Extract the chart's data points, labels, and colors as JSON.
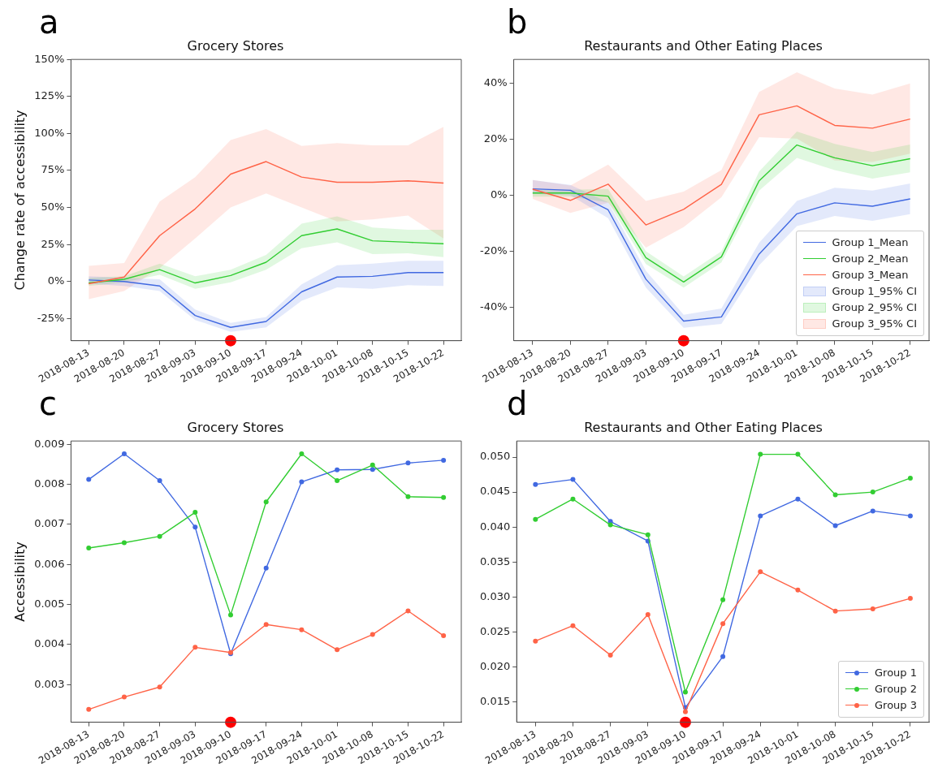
{
  "chart_data": [
    {
      "type": "line",
      "title": "Grocery Stores",
      "ylabel": "Change rate of accessibility",
      "annotations": [
        "a"
      ],
      "categories": [
        "2018-08-13",
        "2018-08-20",
        "2018-08-27",
        "2018-09-03",
        "2018-09-10",
        "2018-09-17",
        "2018-09-24",
        "2018-10-01",
        "2018-10-08",
        "2018-10-15",
        "2018-10-22"
      ],
      "ylim": [
        -40,
        150
      ],
      "yticks": [
        {
          "value": -25,
          "label": "-25%"
        },
        {
          "value": 0,
          "label": "0%"
        },
        {
          "value": 25,
          "label": "25%"
        },
        {
          "value": 50,
          "label": "50%"
        },
        {
          "value": 75,
          "label": "75%"
        },
        {
          "value": 100,
          "label": "100%"
        },
        {
          "value": 125,
          "label": "125%"
        },
        {
          "value": 150,
          "label": "150%"
        }
      ],
      "grid": false,
      "legend": false,
      "marker": "none",
      "series": [
        {
          "type": "line",
          "color": "#4169e1",
          "values": [
            1,
            0,
            -3,
            -23,
            -31,
            -27,
            -7,
            3,
            3.5,
            6,
            6
          ],
          "lower": [
            -1.5,
            -3,
            -6.5,
            -26,
            -34,
            -31,
            -13,
            -4,
            -5,
            -2.5,
            -3
          ],
          "upper": [
            3.5,
            2.5,
            1.5,
            -19,
            -28,
            -24,
            -2,
            11,
            12,
            14,
            14
          ]
        },
        {
          "type": "line",
          "color": "#32cd32",
          "values": [
            -1,
            1.5,
            8,
            -1,
            4,
            13,
            31,
            35.5,
            27.5,
            26.5,
            25.5
          ],
          "lower": [
            -3,
            -0.5,
            4.5,
            -5,
            -0.5,
            8,
            22.5,
            26.5,
            18.5,
            19,
            16.5
          ],
          "upper": [
            2.5,
            3.5,
            12,
            3.5,
            8,
            18,
            39,
            44,
            36.5,
            35,
            35
          ]
        },
        {
          "type": "line",
          "color": "#ff6347",
          "values": [
            -1.5,
            3,
            31,
            49,
            72.5,
            81,
            70.5,
            67,
            67,
            68,
            66.5
          ],
          "lower": [
            -12,
            -6.5,
            9,
            29,
            50,
            59.5,
            50,
            40.5,
            42,
            44.5,
            29
          ],
          "upper": [
            10.5,
            12.5,
            54,
            70.5,
            95.5,
            103,
            91.5,
            93.5,
            92,
            92,
            104.5
          ]
        },
        {
          "type": "scatter",
          "marker": "circle",
          "color": "#ff0000",
          "values": [
            null,
            null,
            null,
            null,
            -40,
            null,
            null,
            null,
            null,
            null,
            null
          ]
        }
      ]
    },
    {
      "type": "line",
      "title": "Restaurants and Other Eating Places",
      "annotations": [
        "b",
        "Group 1_95% CI",
        "Group 2_95% CI",
        "Group 3_95% CI"
      ],
      "categories": [
        "2018-08-13",
        "2018-08-20",
        "2018-08-27",
        "2018-09-03",
        "2018-09-10",
        "2018-09-17",
        "2018-09-24",
        "2018-10-01",
        "2018-10-08",
        "2018-10-15",
        "2018-10-22"
      ],
      "ylim": [
        -52,
        48.6
      ],
      "yticks": [
        {
          "value": -40,
          "label": "-40%"
        },
        {
          "value": -20,
          "label": "-20%"
        },
        {
          "value": 0,
          "label": "0%"
        },
        {
          "value": 20,
          "label": "20%"
        },
        {
          "value": 40,
          "label": "40%"
        }
      ],
      "grid": false,
      "legend": "bottom right",
      "marker": "none",
      "series": [
        {
          "type": "line",
          "name": "Group 1_Mean",
          "color": "#4169e1",
          "values": [
            2.3,
            1.8,
            -5.2,
            -30,
            -45,
            -43.5,
            -21,
            -6.6,
            -2.7,
            -3.9,
            -1.3
          ],
          "lower": [
            0.5,
            0,
            -8.2,
            -33,
            -47.4,
            -46,
            -25,
            -11,
            -7.4,
            -9.1,
            -6.7
          ],
          "upper": [
            5.5,
            3.7,
            -2.5,
            -27,
            -42.7,
            -40.5,
            -17,
            -2,
            2.7,
            1.7,
            4.2
          ]
        },
        {
          "type": "line",
          "name": "Group 2_Mean",
          "color": "#32cd32",
          "values": [
            0.8,
            0.8,
            -0.3,
            -22.3,
            -31,
            -22,
            5.2,
            18,
            13.4,
            10.6,
            13.1
          ],
          "lower": [
            -0.5,
            -0.5,
            -2.5,
            -24.6,
            -33,
            -24,
            1.7,
            13.4,
            9,
            6,
            8.2
          ],
          "upper": [
            2,
            2,
            2.3,
            -20,
            -29,
            -20,
            8.5,
            22.8,
            18.4,
            15.5,
            18.2
          ]
        },
        {
          "type": "line",
          "name": "Group 3_Mean",
          "color": "#ff6347",
          "values": [
            2.2,
            -1.8,
            4,
            -10.6,
            -5,
            3.9,
            28.8,
            32,
            25,
            24,
            27.3
          ],
          "lower": [
            -1.3,
            -6.3,
            -2.7,
            -18.7,
            -11.4,
            -0.7,
            20.8,
            20.3,
            12.4,
            11.9,
            14.9
          ],
          "upper": [
            5.5,
            3.5,
            11,
            -2,
            1.3,
            9,
            37,
            44,
            38.2,
            36,
            40
          ]
        },
        {
          "type": "scatter",
          "marker": "circle",
          "color": "#ff0000",
          "values": [
            null,
            null,
            null,
            null,
            -52,
            null,
            null,
            null,
            null,
            null,
            null
          ]
        }
      ]
    },
    {
      "type": "line",
      "title": "Grocery Stores",
      "ylabel": "Accessibility",
      "annotations": [
        "c"
      ],
      "categories": [
        "2018-08-13",
        "2018-08-20",
        "2018-08-27",
        "2018-09-03",
        "2018-09-10",
        "2018-09-17",
        "2018-09-24",
        "2018-10-01",
        "2018-10-08",
        "2018-10-15",
        "2018-10-22"
      ],
      "ylim": [
        0.00206,
        0.00908
      ],
      "yticks": [
        0.003,
        0.004,
        0.005,
        0.006,
        0.007,
        0.008,
        0.009
      ],
      "grid": false,
      "legend": false,
      "marker": "circle",
      "series": [
        {
          "type": "line",
          "color": "#4169e1",
          "values": [
            0.00812,
            0.00876,
            0.00809,
            0.00693,
            0.00377,
            0.00591,
            0.00806,
            0.00836,
            0.00837,
            0.00853,
            0.0086
          ]
        },
        {
          "type": "line",
          "color": "#32cd32",
          "values": [
            0.00641,
            0.00654,
            0.0067,
            0.0073,
            0.00474,
            0.00756,
            0.00876,
            0.00809,
            0.00848,
            0.00769,
            0.00767
          ]
        },
        {
          "type": "line",
          "color": "#ff6347",
          "values": [
            0.00238,
            0.00269,
            0.00294,
            0.00393,
            0.0038,
            0.0045,
            0.00437,
            0.00387,
            0.00425,
            0.00484,
            0.00422
          ]
        },
        {
          "type": "scatter",
          "color": "#ff0000",
          "values": [
            null,
            null,
            null,
            null,
            0.00206,
            null,
            null,
            null,
            null,
            null,
            null
          ]
        }
      ]
    },
    {
      "type": "line",
      "title": "Restaurants and Other Eating Places",
      "annotations": [
        "d"
      ],
      "categories": [
        "2018-08-13",
        "2018-08-20",
        "2018-08-27",
        "2018-09-03",
        "2018-09-10",
        "2018-09-17",
        "2018-09-24",
        "2018-10-01",
        "2018-10-08",
        "2018-10-15",
        "2018-10-22"
      ],
      "ylim": [
        0.0121,
        0.0523
      ],
      "yticks": [
        0.015,
        {
          "value": 0.02,
          "label": "0.020"
        },
        0.025,
        {
          "value": 0.03,
          "label": "0.030"
        },
        0.035,
        {
          "value": 0.04,
          "label": "0.040"
        },
        0.045,
        {
          "value": 0.05,
          "label": "0.050"
        }
      ],
      "grid": false,
      "legend": "bottom right",
      "marker": "circle",
      "series": [
        {
          "type": "line",
          "name": "Group 1",
          "color": "#4169e1",
          "values": [
            0.0461,
            0.0468,
            0.0408,
            0.038,
            0.0142,
            0.0215,
            0.0416,
            0.044,
            0.0402,
            0.0423,
            0.0416
          ]
        },
        {
          "type": "line",
          "name": "Group 2",
          "color": "#32cd32",
          "values": [
            0.0411,
            0.044,
            0.0403,
            0.0389,
            0.0164,
            0.0296,
            0.0504,
            0.0504,
            0.0446,
            0.045,
            0.047
          ]
        },
        {
          "type": "line",
          "name": "Group 3",
          "color": "#ff6347",
          "values": [
            0.0237,
            0.0259,
            0.0217,
            0.0275,
            0.0136,
            0.0262,
            0.0336,
            0.031,
            0.028,
            0.0283,
            0.0298
          ]
        },
        {
          "type": "scatter",
          "color": "#ff0000",
          "values": [
            null,
            null,
            null,
            null,
            0.0121,
            null,
            null,
            null,
            null,
            null,
            null
          ]
        }
      ]
    }
  ]
}
